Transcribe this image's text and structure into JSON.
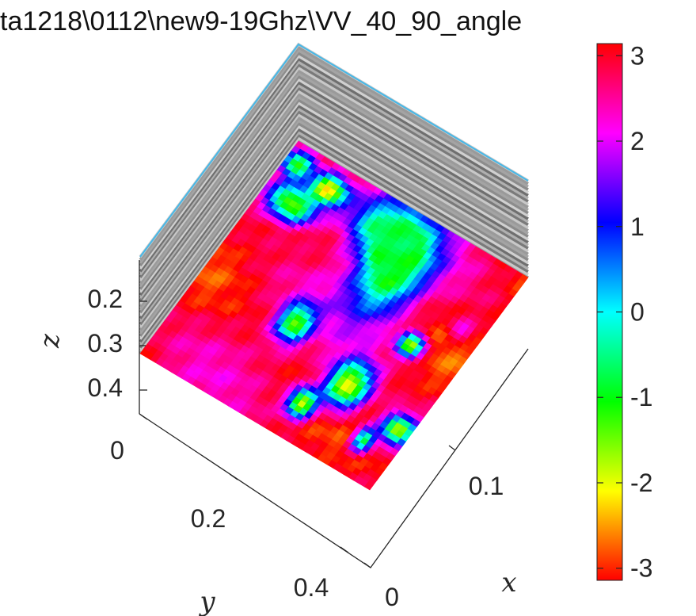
{
  "chart_data": {
    "type": "heatmap",
    "title": "ta1218\\0112\\new9-19Ghz\\VV_40_90_angle",
    "xlabel": "x",
    "ylabel": "y",
    "zlabel": "z",
    "colormap": "hsv",
    "x_ticks": [
      "0",
      "0.1"
    ],
    "y_ticks": [
      "0",
      "0.2",
      "0.4"
    ],
    "z_ticks": [
      "0.2",
      "0.3",
      "0.4"
    ],
    "colorbar": {
      "range": [
        -3.1416,
        3.1416
      ],
      "ticks": [
        "3",
        "2",
        "1",
        "0",
        "-1",
        "-2",
        "-3"
      ],
      "tick_values": [
        3,
        2,
        1,
        0,
        -1,
        -2,
        -3
      ]
    },
    "phase_map": {
      "u_range": [
        0,
        1
      ],
      "v_range": [
        0,
        1
      ],
      "background_phase": 2.9,
      "features": [
        {
          "kind": "blob",
          "u": 0.58,
          "v": 0.25,
          "su": 0.12,
          "sv": 0.2,
          "phase": -1.0
        },
        {
          "kind": "blob",
          "u": 0.47,
          "v": 0.12,
          "su": 0.16,
          "sv": 0.12,
          "phase": -0.6
        },
        {
          "kind": "blob",
          "u": 0.05,
          "v": 0.08,
          "su": 0.06,
          "sv": 0.06,
          "phase": -1.0
        },
        {
          "kind": "blob",
          "u": 0.12,
          "v": 0.22,
          "su": 0.1,
          "sv": 0.07,
          "phase": -1.6
        },
        {
          "kind": "blob",
          "u": 0.2,
          "v": 0.1,
          "su": 0.07,
          "sv": 0.06,
          "phase": -2.2
        },
        {
          "kind": "blob",
          "u": 0.7,
          "v": 0.7,
          "su": 0.08,
          "sv": 0.1,
          "phase": -2.2
        },
        {
          "kind": "blob",
          "u": 0.6,
          "v": 0.85,
          "su": 0.05,
          "sv": 0.06,
          "phase": -2.1
        },
        {
          "kind": "blob",
          "u": 0.4,
          "v": 0.6,
          "su": 0.06,
          "sv": 0.08,
          "phase": -1.6
        },
        {
          "kind": "blob",
          "u": 0.95,
          "v": 0.75,
          "su": 0.06,
          "sv": 0.06,
          "phase": -1.8
        },
        {
          "kind": "blob",
          "u": 0.87,
          "v": 0.85,
          "su": 0.04,
          "sv": 0.05,
          "phase": -0.8
        },
        {
          "kind": "blob",
          "u": 0.8,
          "v": 0.45,
          "su": 0.05,
          "sv": 0.05,
          "phase": -1.6
        },
        {
          "kind": "blob",
          "u": 0.92,
          "v": 0.3,
          "su": 0.05,
          "sv": 0.05,
          "phase": 2.2
        }
      ]
    }
  }
}
